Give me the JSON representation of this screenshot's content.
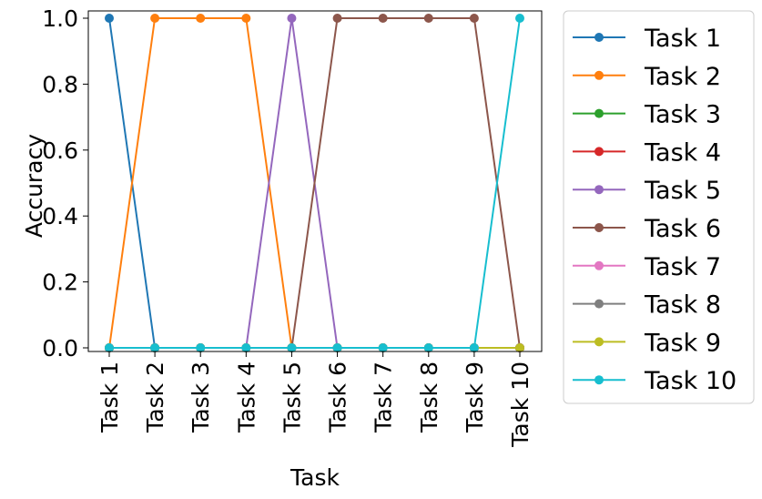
{
  "chart_data": {
    "type": "line",
    "categories": [
      "Task 1",
      "Task 2",
      "Task 3",
      "Task 4",
      "Task 5",
      "Task 6",
      "Task 7",
      "Task 8",
      "Task 9",
      "Task 10"
    ],
    "xlabel": "Task",
    "ylabel": "Accuracy",
    "ylim": [
      0.0,
      1.0
    ],
    "yticks": [
      "0.0",
      "0.2",
      "0.4",
      "0.6",
      "0.8",
      "1.0"
    ],
    "grid": false,
    "legend_position": "outside-right",
    "series": [
      {
        "name": "Task 1",
        "color": "#1f77b4",
        "values": [
          1,
          0,
          0,
          0,
          0,
          0,
          0,
          0,
          0,
          0
        ]
      },
      {
        "name": "Task 2",
        "color": "#ff7f0e",
        "values": [
          0,
          1,
          1,
          1,
          0,
          0,
          0,
          0,
          0,
          0
        ]
      },
      {
        "name": "Task 3",
        "color": "#2ca02c",
        "values": [
          0,
          0,
          0,
          0,
          0,
          0,
          0,
          0,
          0,
          0
        ]
      },
      {
        "name": "Task 4",
        "color": "#d62728",
        "values": [
          0,
          0,
          0,
          0,
          0,
          0,
          0,
          0,
          0,
          0
        ]
      },
      {
        "name": "Task 5",
        "color": "#9467bd",
        "values": [
          0,
          0,
          0,
          0,
          1,
          0,
          0,
          0,
          0,
          0
        ]
      },
      {
        "name": "Task 6",
        "color": "#8c564b",
        "values": [
          0,
          0,
          0,
          0,
          0,
          1,
          1,
          1,
          1,
          0
        ]
      },
      {
        "name": "Task 7",
        "color": "#e377c2",
        "values": [
          0,
          0,
          0,
          0,
          0,
          0,
          0,
          0,
          0,
          0
        ]
      },
      {
        "name": "Task 8",
        "color": "#7f7f7f",
        "values": [
          0,
          0,
          0,
          0,
          0,
          0,
          0,
          0,
          0,
          0
        ]
      },
      {
        "name": "Task 9",
        "color": "#bcbd22",
        "values": [
          0,
          0,
          0,
          0,
          0,
          0,
          0,
          0,
          0,
          0
        ]
      },
      {
        "name": "Task 10",
        "color": "#17becf",
        "values": [
          0,
          0,
          0,
          0,
          0,
          0,
          0,
          0,
          0,
          1
        ]
      }
    ]
  }
}
